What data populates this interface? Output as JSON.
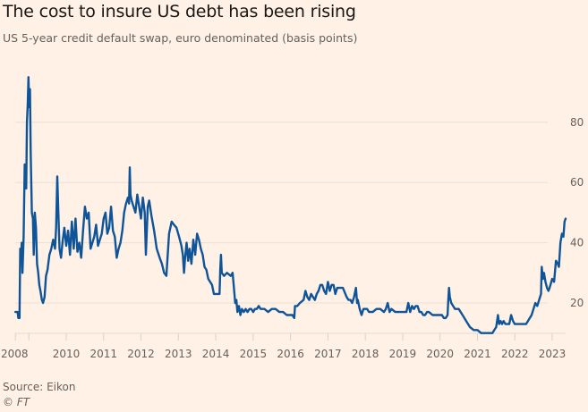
{
  "chart_data": {
    "type": "line",
    "title": "The cost to insure US debt has been rising",
    "subtitle": "US 5-year credit default swap, euro denominated (basis points)",
    "xlabel": "",
    "ylabel": "",
    "source": "Source: Eikon",
    "copyright": "© FT",
    "ylim": [
      10,
      95
    ],
    "xlim": [
      2008.64,
      2023.37
    ],
    "grid": true,
    "y_ticks": [
      20,
      40,
      60,
      80
    ],
    "y_tick_labels": [
      "20",
      "40",
      "60",
      "80"
    ],
    "x_ticks": [
      {
        "t": 2008.64,
        "label": "2008"
      },
      {
        "t": 2009.0,
        "label": ""
      },
      {
        "t": 2010,
        "label": "2010"
      },
      {
        "t": 2011,
        "label": "2011"
      },
      {
        "t": 2012,
        "label": "2012"
      },
      {
        "t": 2013,
        "label": "2013"
      },
      {
        "t": 2014,
        "label": "2014"
      },
      {
        "t": 2015,
        "label": "2015"
      },
      {
        "t": 2016,
        "label": "2016"
      },
      {
        "t": 2017,
        "label": "2017"
      },
      {
        "t": 2018,
        "label": "2018"
      },
      {
        "t": 2019,
        "label": "2019"
      },
      {
        "t": 2020,
        "label": "2020"
      },
      {
        "t": 2021,
        "label": "2021"
      },
      {
        "t": 2022,
        "label": "2022"
      },
      {
        "t": 2023,
        "label": "2023"
      }
    ],
    "line_color": "#0F5499",
    "series": [
      {
        "name": "US 5-year CDS (EUR, bp)",
        "points": [
          [
            2008.64,
            17
          ],
          [
            2008.7,
            17
          ],
          [
            2008.72,
            15
          ],
          [
            2008.75,
            15
          ],
          [
            2008.77,
            38
          ],
          [
            2008.79,
            35
          ],
          [
            2008.81,
            40
          ],
          [
            2008.83,
            30
          ],
          [
            2008.86,
            42
          ],
          [
            2008.89,
            66
          ],
          [
            2008.91,
            62
          ],
          [
            2008.93,
            58
          ],
          [
            2008.95,
            80
          ],
          [
            2008.97,
            86
          ],
          [
            2008.99,
            95
          ],
          [
            2009.01,
            85
          ],
          [
            2009.03,
            91
          ],
          [
            2009.05,
            70
          ],
          [
            2009.08,
            50
          ],
          [
            2009.11,
            48
          ],
          [
            2009.13,
            36
          ],
          [
            2009.16,
            50
          ],
          [
            2009.19,
            45
          ],
          [
            2009.22,
            33
          ],
          [
            2009.25,
            30
          ],
          [
            2009.28,
            26
          ],
          [
            2009.31,
            24
          ],
          [
            2009.35,
            21
          ],
          [
            2009.38,
            20
          ],
          [
            2009.42,
            22
          ],
          [
            2009.46,
            29
          ],
          [
            2009.5,
            31
          ],
          [
            2009.55,
            36
          ],
          [
            2009.6,
            38
          ],
          [
            2009.65,
            41
          ],
          [
            2009.7,
            38
          ],
          [
            2009.73,
            45
          ],
          [
            2009.76,
            62
          ],
          [
            2009.79,
            50
          ],
          [
            2009.82,
            38
          ],
          [
            2009.86,
            35
          ],
          [
            2009.9,
            40
          ],
          [
            2009.95,
            45
          ],
          [
            2010.0,
            39
          ],
          [
            2010.05,
            44
          ],
          [
            2010.1,
            36
          ],
          [
            2010.15,
            47
          ],
          [
            2010.2,
            38
          ],
          [
            2010.25,
            48
          ],
          [
            2010.3,
            37
          ],
          [
            2010.35,
            40
          ],
          [
            2010.4,
            35
          ],
          [
            2010.45,
            44
          ],
          [
            2010.5,
            52
          ],
          [
            2010.55,
            48
          ],
          [
            2010.6,
            50
          ],
          [
            2010.65,
            38
          ],
          [
            2010.7,
            40
          ],
          [
            2010.75,
            42
          ],
          [
            2010.8,
            46
          ],
          [
            2010.85,
            39
          ],
          [
            2010.9,
            41
          ],
          [
            2010.95,
            43
          ],
          [
            2011.0,
            48
          ],
          [
            2011.05,
            50
          ],
          [
            2011.1,
            43
          ],
          [
            2011.15,
            45
          ],
          [
            2011.2,
            52
          ],
          [
            2011.25,
            44
          ],
          [
            2011.3,
            42
          ],
          [
            2011.35,
            35
          ],
          [
            2011.4,
            38
          ],
          [
            2011.45,
            40
          ],
          [
            2011.5,
            44
          ],
          [
            2011.55,
            50
          ],
          [
            2011.6,
            53
          ],
          [
            2011.65,
            55
          ],
          [
            2011.68,
            53
          ],
          [
            2011.7,
            65
          ],
          [
            2011.72,
            56
          ],
          [
            2011.75,
            54
          ],
          [
            2011.8,
            52
          ],
          [
            2011.85,
            50
          ],
          [
            2011.9,
            56
          ],
          [
            2011.95,
            52
          ],
          [
            2012.0,
            48
          ],
          [
            2012.05,
            55
          ],
          [
            2012.1,
            50
          ],
          [
            2012.13,
            36
          ],
          [
            2012.18,
            52
          ],
          [
            2012.22,
            54
          ],
          [
            2012.28,
            49
          ],
          [
            2012.35,
            44
          ],
          [
            2012.42,
            38
          ],
          [
            2012.5,
            35
          ],
          [
            2012.56,
            33
          ],
          [
            2012.62,
            30
          ],
          [
            2012.68,
            29
          ],
          [
            2012.75,
            43
          ],
          [
            2012.82,
            47
          ],
          [
            2012.88,
            46
          ],
          [
            2012.95,
            45
          ],
          [
            2013.02,
            42
          ],
          [
            2013.08,
            39
          ],
          [
            2013.12,
            36
          ],
          [
            2013.15,
            30
          ],
          [
            2013.18,
            35
          ],
          [
            2013.22,
            40
          ],
          [
            2013.26,
            34
          ],
          [
            2013.3,
            38
          ],
          [
            2013.35,
            33
          ],
          [
            2013.4,
            41
          ],
          [
            2013.45,
            36
          ],
          [
            2013.5,
            43
          ],
          [
            2013.55,
            41
          ],
          [
            2013.6,
            38
          ],
          [
            2013.65,
            36
          ],
          [
            2013.7,
            32
          ],
          [
            2013.75,
            31
          ],
          [
            2013.8,
            28
          ],
          [
            2013.85,
            27
          ],
          [
            2013.9,
            26
          ],
          [
            2013.95,
            23
          ],
          [
            2014.0,
            23
          ],
          [
            2014.05,
            23
          ],
          [
            2014.1,
            23
          ],
          [
            2014.12,
            31
          ],
          [
            2014.14,
            36
          ],
          [
            2014.16,
            30
          ],
          [
            2014.22,
            29
          ],
          [
            2014.3,
            30
          ],
          [
            2014.4,
            29
          ],
          [
            2014.45,
            30
          ],
          [
            2014.48,
            26
          ],
          [
            2014.52,
            20
          ],
          [
            2014.55,
            21
          ],
          [
            2014.58,
            17
          ],
          [
            2014.62,
            19
          ],
          [
            2014.66,
            16
          ],
          [
            2014.7,
            18
          ],
          [
            2014.75,
            17
          ],
          [
            2014.8,
            18
          ],
          [
            2014.85,
            17
          ],
          [
            2014.9,
            18
          ],
          [
            2014.95,
            18
          ],
          [
            2015.0,
            17
          ],
          [
            2015.05,
            18
          ],
          [
            2015.1,
            18
          ],
          [
            2015.15,
            19
          ],
          [
            2015.2,
            18
          ],
          [
            2015.3,
            18
          ],
          [
            2015.4,
            17
          ],
          [
            2015.5,
            18
          ],
          [
            2015.6,
            18
          ],
          [
            2015.7,
            17
          ],
          [
            2015.8,
            17
          ],
          [
            2015.9,
            16
          ],
          [
            2016.0,
            16
          ],
          [
            2016.05,
            16
          ],
          [
            2016.1,
            15
          ],
          [
            2016.12,
            19
          ],
          [
            2016.18,
            19
          ],
          [
            2016.25,
            20
          ],
          [
            2016.35,
            21
          ],
          [
            2016.4,
            24
          ],
          [
            2016.45,
            22
          ],
          [
            2016.5,
            21
          ],
          [
            2016.55,
            23
          ],
          [
            2016.6,
            22
          ],
          [
            2016.65,
            21
          ],
          [
            2016.7,
            23
          ],
          [
            2016.75,
            24
          ],
          [
            2016.8,
            26
          ],
          [
            2016.85,
            26
          ],
          [
            2016.9,
            24
          ],
          [
            2016.95,
            23
          ],
          [
            2017.0,
            27
          ],
          [
            2017.05,
            24
          ],
          [
            2017.1,
            26
          ],
          [
            2017.15,
            26
          ],
          [
            2017.2,
            23
          ],
          [
            2017.25,
            25
          ],
          [
            2017.3,
            25
          ],
          [
            2017.4,
            25
          ],
          [
            2017.5,
            22
          ],
          [
            2017.55,
            21
          ],
          [
            2017.6,
            21
          ],
          [
            2017.65,
            20
          ],
          [
            2017.7,
            22
          ],
          [
            2017.75,
            25
          ],
          [
            2017.78,
            20
          ],
          [
            2017.8,
            21
          ],
          [
            2017.85,
            18
          ],
          [
            2017.9,
            16
          ],
          [
            2017.95,
            18
          ],
          [
            2018.0,
            18
          ],
          [
            2018.05,
            18
          ],
          [
            2018.1,
            17
          ],
          [
            2018.2,
            17
          ],
          [
            2018.3,
            18
          ],
          [
            2018.4,
            18
          ],
          [
            2018.5,
            17
          ],
          [
            2018.55,
            18
          ],
          [
            2018.6,
            20
          ],
          [
            2018.65,
            17
          ],
          [
            2018.7,
            18
          ],
          [
            2018.8,
            17
          ],
          [
            2018.9,
            17
          ],
          [
            2019.0,
            17
          ],
          [
            2019.05,
            17
          ],
          [
            2019.1,
            17
          ],
          [
            2019.15,
            20
          ],
          [
            2019.2,
            17
          ],
          [
            2019.25,
            19
          ],
          [
            2019.3,
            18
          ],
          [
            2019.35,
            19
          ],
          [
            2019.4,
            19
          ],
          [
            2019.45,
            17
          ],
          [
            2019.5,
            17
          ],
          [
            2019.55,
            16
          ],
          [
            2019.6,
            16
          ],
          [
            2019.65,
            17
          ],
          [
            2019.7,
            17
          ],
          [
            2019.8,
            16
          ],
          [
            2019.9,
            16
          ],
          [
            2020.0,
            16
          ],
          [
            2020.05,
            16
          ],
          [
            2020.1,
            15
          ],
          [
            2020.15,
            15
          ],
          [
            2020.2,
            16
          ],
          [
            2020.22,
            21
          ],
          [
            2020.24,
            25
          ],
          [
            2020.26,
            22
          ],
          [
            2020.3,
            20
          ],
          [
            2020.35,
            19
          ],
          [
            2020.4,
            18
          ],
          [
            2020.45,
            18
          ],
          [
            2020.5,
            18
          ],
          [
            2020.55,
            17
          ],
          [
            2020.6,
            16
          ],
          [
            2020.65,
            15
          ],
          [
            2020.7,
            14
          ],
          [
            2020.75,
            13
          ],
          [
            2020.8,
            12
          ],
          [
            2020.9,
            11
          ],
          [
            2021.0,
            11
          ],
          [
            2021.1,
            10
          ],
          [
            2021.2,
            10
          ],
          [
            2021.3,
            10
          ],
          [
            2021.35,
            10
          ],
          [
            2021.4,
            10
          ],
          [
            2021.45,
            11
          ],
          [
            2021.5,
            12
          ],
          [
            2021.55,
            16
          ],
          [
            2021.58,
            13
          ],
          [
            2021.62,
            14
          ],
          [
            2021.66,
            13
          ],
          [
            2021.7,
            14
          ],
          [
            2021.75,
            13
          ],
          [
            2021.8,
            13
          ],
          [
            2021.85,
            13
          ],
          [
            2021.9,
            16
          ],
          [
            2021.95,
            14
          ],
          [
            2022.0,
            13
          ],
          [
            2022.1,
            13
          ],
          [
            2022.2,
            13
          ],
          [
            2022.3,
            13
          ],
          [
            2022.35,
            14
          ],
          [
            2022.4,
            15
          ],
          [
            2022.45,
            16
          ],
          [
            2022.5,
            18
          ],
          [
            2022.55,
            20
          ],
          [
            2022.6,
            19
          ],
          [
            2022.65,
            21
          ],
          [
            2022.7,
            23
          ],
          [
            2022.72,
            32
          ],
          [
            2022.75,
            28
          ],
          [
            2022.78,
            30
          ],
          [
            2022.82,
            27
          ],
          [
            2022.86,
            25
          ],
          [
            2022.9,
            24
          ],
          [
            2022.93,
            25
          ],
          [
            2023.0,
            28
          ],
          [
            2023.05,
            27
          ],
          [
            2023.1,
            34
          ],
          [
            2023.15,
            33
          ],
          [
            2023.18,
            32
          ],
          [
            2023.22,
            40
          ],
          [
            2023.26,
            43
          ],
          [
            2023.3,
            42
          ],
          [
            2023.33,
            47
          ],
          [
            2023.36,
            48
          ]
        ]
      }
    ]
  }
}
